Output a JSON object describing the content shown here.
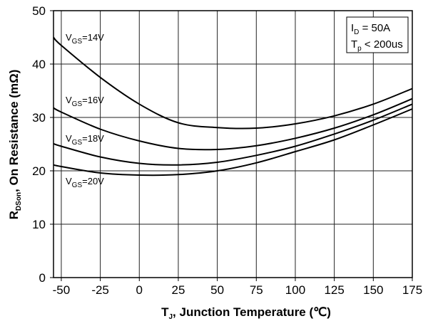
{
  "chart_data": {
    "type": "line",
    "xlabel": {
      "main": "T",
      "sub": "J",
      "rest": ", Junction Temperature (℃)"
    },
    "ylabel": {
      "main": "R",
      "sub": "DSon",
      "rest": ", On Resistance (mΩ)"
    },
    "xlim": [
      -55,
      175
    ],
    "ylim": [
      0,
      50
    ],
    "xticks": [
      -50,
      -25,
      0,
      25,
      50,
      75,
      100,
      125,
      150,
      175
    ],
    "yticks": [
      0,
      10,
      20,
      30,
      40,
      50
    ],
    "grid": true,
    "annotation_box": {
      "line1": {
        "main": "I",
        "sub": "D",
        "rest": " = 50A"
      },
      "line2": {
        "main": "T",
        "sub": "p",
        "rest": " < 200us"
      },
      "placement": "top-right"
    },
    "series": [
      {
        "name": {
          "main": "V",
          "sub": "GS",
          "rest": "=14V"
        },
        "x": [
          -55,
          -50,
          -25,
          0,
          25,
          50,
          75,
          100,
          125,
          150,
          175
        ],
        "y": [
          45.0,
          43.5,
          37.5,
          32.5,
          29.0,
          28.1,
          28.0,
          28.8,
          30.3,
          32.5,
          35.4
        ]
      },
      {
        "name": {
          "main": "V",
          "sub": "GS",
          "rest": "=16V"
        },
        "x": [
          -55,
          -50,
          -25,
          0,
          25,
          50,
          75,
          100,
          125,
          150,
          175
        ],
        "y": [
          31.8,
          31.0,
          27.8,
          25.6,
          24.2,
          24.0,
          24.7,
          26.1,
          28.0,
          30.5,
          33.5
        ]
      },
      {
        "name": {
          "main": "V",
          "sub": "GS",
          "rest": "=18V"
        },
        "x": [
          -55,
          -50,
          -25,
          0,
          25,
          50,
          75,
          100,
          125,
          150,
          175
        ],
        "y": [
          25.1,
          24.6,
          22.6,
          21.4,
          21.1,
          21.6,
          22.9,
          24.6,
          26.9,
          29.5,
          32.5
        ]
      },
      {
        "name": {
          "main": "V",
          "sub": "GS",
          "rest": "=20V"
        },
        "x": [
          -55,
          -50,
          -25,
          0,
          25,
          50,
          75,
          100,
          125,
          150,
          175
        ],
        "y": [
          21.1,
          20.8,
          19.6,
          19.2,
          19.3,
          20.0,
          21.5,
          23.6,
          25.8,
          28.6,
          31.6
        ]
      }
    ]
  }
}
